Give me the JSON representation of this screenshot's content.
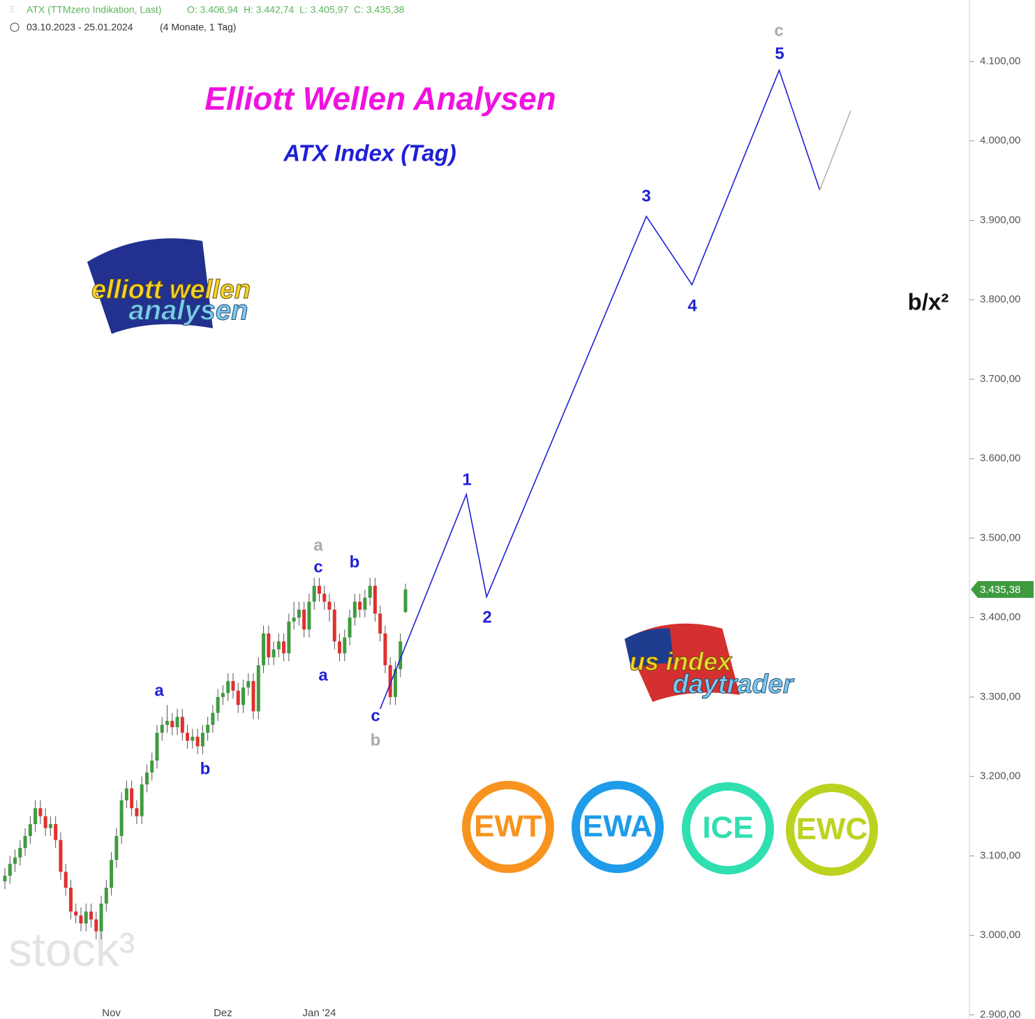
{
  "chart_data": {
    "type": "candlestick",
    "header": {
      "instrument": "ATX (TTMzero Indikation, Last)",
      "ohlc": "O: 3.406,94  H: 3.442,74  L: 3.405,97  C: 3.435,38",
      "range": "03.10.2023 - 25.01.2024",
      "span": "(4 Monate, 1 Tag)"
    },
    "title": "Elliott Wellen Analysen",
    "subtitle": "ATX Index (Tag)",
    "side_label": "b/x²",
    "watermark": "stock³",
    "logos": {
      "eu": [
        "elliott wellen",
        "analysen"
      ],
      "us": [
        "us index",
        "daytrader"
      ],
      "badges": [
        "EWT",
        "EWA",
        "ICE",
        "EWC"
      ]
    },
    "categories": [
      null,
      null,
      null,
      null,
      null,
      null,
      null,
      null,
      null,
      null,
      null,
      null,
      null,
      null,
      null,
      null,
      null,
      null,
      null,
      null,
      null,
      "Nov",
      null,
      null,
      null,
      null,
      null,
      null,
      null,
      null,
      null,
      null,
      null,
      null,
      null,
      null,
      null,
      null,
      null,
      null,
      null,
      null,
      null,
      "Dez",
      null,
      null,
      null,
      null,
      null,
      null,
      null,
      null,
      null,
      null,
      null,
      null,
      null,
      null,
      null,
      null,
      null,
      null,
      "Jan '24",
      null,
      null,
      null,
      null,
      null,
      null,
      null,
      null,
      null,
      null,
      null,
      null,
      null,
      null,
      null,
      null,
      null
    ],
    "opens": [
      3068,
      3075,
      3090,
      3098,
      3110,
      3125,
      3140,
      3160,
      3150,
      3135,
      3140,
      3120,
      3080,
      3060,
      3030,
      3025,
      3015,
      3030,
      3020,
      3005,
      3040,
      3060,
      3095,
      3125,
      3170,
      3185,
      3160,
      3150,
      3190,
      3205,
      3220,
      3255,
      3265,
      3270,
      3262,
      3275,
      3255,
      3245,
      3250,
      3238,
      3255,
      3265,
      3280,
      3300,
      3305,
      3320,
      3308,
      3290,
      3312,
      3320,
      3282,
      3340,
      3380,
      3350,
      3360,
      3370,
      3355,
      3395,
      3400,
      3410,
      3385,
      3420,
      3440,
      3430,
      3420,
      3410,
      3370,
      3355,
      3375,
      3400,
      3420,
      3410,
      3425,
      3440,
      3405,
      3380,
      3340,
      3300,
      3335,
      3406.94
    ],
    "highs": [
      3085,
      3100,
      3108,
      3120,
      3135,
      3150,
      3170,
      3170,
      3160,
      3150,
      3150,
      3130,
      3090,
      3070,
      3040,
      3035,
      3040,
      3040,
      3030,
      3050,
      3070,
      3105,
      3135,
      3180,
      3195,
      3195,
      3170,
      3200,
      3215,
      3230,
      3265,
      3275,
      3290,
      3280,
      3285,
      3285,
      3265,
      3260,
      3260,
      3265,
      3275,
      3290,
      3310,
      3315,
      3330,
      3330,
      3318,
      3322,
      3330,
      3330,
      3350,
      3390,
      3390,
      3370,
      3380,
      3380,
      3405,
      3420,
      3420,
      3420,
      3430,
      3450,
      3450,
      3440,
      3430,
      3420,
      3380,
      3385,
      3410,
      3430,
      3430,
      3435,
      3450,
      3450,
      3415,
      3390,
      3350,
      3345,
      3380,
      3442.74
    ],
    "lows": [
      3058,
      3065,
      3080,
      3088,
      3100,
      3115,
      3130,
      3140,
      3125,
      3125,
      3110,
      3070,
      3050,
      3020,
      3015,
      3005,
      3005,
      3010,
      2995,
      2995,
      3030,
      3050,
      3085,
      3115,
      3160,
      3150,
      3140,
      3140,
      3180,
      3195,
      3210,
      3245,
      3255,
      3252,
      3252,
      3245,
      3235,
      3235,
      3228,
      3228,
      3245,
      3255,
      3270,
      3290,
      3295,
      3298,
      3280,
      3280,
      3302,
      3272,
      3272,
      3330,
      3340,
      3340,
      3350,
      3345,
      3345,
      3385,
      3390,
      3375,
      3375,
      3410,
      3420,
      3410,
      3395,
      3360,
      3345,
      3345,
      3365,
      3390,
      3400,
      3400,
      3415,
      3395,
      3370,
      3330,
      3290,
      3290,
      3325,
      3405.97
    ],
    "closes": [
      3075,
      3090,
      3098,
      3110,
      3125,
      3140,
      3160,
      3150,
      3135,
      3140,
      3120,
      3080,
      3060,
      3030,
      3025,
      3015,
      3030,
      3020,
      3005,
      3040,
      3060,
      3095,
      3125,
      3170,
      3185,
      3160,
      3150,
      3190,
      3205,
      3220,
      3255,
      3265,
      3270,
      3262,
      3275,
      3255,
      3245,
      3250,
      3238,
      3255,
      3265,
      3280,
      3300,
      3305,
      3320,
      3308,
      3290,
      3312,
      3320,
      3282,
      3340,
      3380,
      3350,
      3360,
      3370,
      3355,
      3395,
      3400,
      3410,
      3385,
      3420,
      3440,
      3430,
      3420,
      3410,
      3370,
      3355,
      3375,
      3400,
      3420,
      3410,
      3425,
      3440,
      3405,
      3380,
      3340,
      3300,
      3335,
      3370,
      3435.38
    ],
    "up_color": "#3f9b3f",
    "down_color": "#e0302f",
    "projection": [
      {
        "color": "#1f1fd6",
        "x": [
          74,
          91,
          95,
          126.5,
          135.5,
          152.7,
          160.7
        ],
        "values": [
          3285,
          3555,
          3426,
          3905,
          3819,
          4089,
          3938
        ]
      },
      {
        "color": "#b5b5b5",
        "x": [
          160.7,
          166.8
        ],
        "values": [
          3938,
          4038
        ]
      }
    ],
    "annotations": [
      {
        "text": "a",
        "color": "#1f1fd6"
      },
      {
        "text": "b",
        "color": "#1f1fd6"
      },
      {
        "text": "a",
        "color": "#aaaaaa"
      },
      {
        "text": "c",
        "color": "#1f1fd6"
      },
      {
        "text": "b",
        "color": "#1f1fd6"
      },
      {
        "text": "a",
        "color": "#1f1fd6"
      },
      {
        "text": "c",
        "color": "#1f1fd6"
      },
      {
        "text": "b",
        "color": "#aaaaaa"
      },
      {
        "text": "1",
        "color": "#1f1fd6"
      },
      {
        "text": "2",
        "color": "#1f1fd6"
      },
      {
        "text": "3",
        "color": "#1f1fd6"
      },
      {
        "text": "4",
        "color": "#1f1fd6"
      },
      {
        "text": "5",
        "color": "#1f1fd6"
      },
      {
        "text": "c",
        "color": "#aaaaaa"
      }
    ],
    "last_price": {
      "value": 3435.38,
      "label": "3.435,38"
    },
    "ylim": [
      2900,
      4160
    ],
    "yticks": [
      {
        "value": 2900,
        "label": "2.900,00"
      },
      {
        "value": 3000,
        "label": "3.000,00"
      },
      {
        "value": 3100,
        "label": "3.100,00"
      },
      {
        "value": 3200,
        "label": "3.200,00"
      },
      {
        "value": 3300,
        "label": "3.300,00"
      },
      {
        "value": 3400,
        "label": "3.400,00"
      },
      {
        "value": 3500,
        "label": "3.500,00"
      },
      {
        "value": 3600,
        "label": "3.600,00"
      },
      {
        "value": 3700,
        "label": "3.700,00"
      },
      {
        "value": 3800,
        "label": "3.800,00"
      },
      {
        "value": 3900,
        "label": "3.900,00"
      },
      {
        "value": 4000,
        "label": "4.000,00"
      },
      {
        "value": 4100,
        "label": "4.100,00"
      }
    ]
  }
}
